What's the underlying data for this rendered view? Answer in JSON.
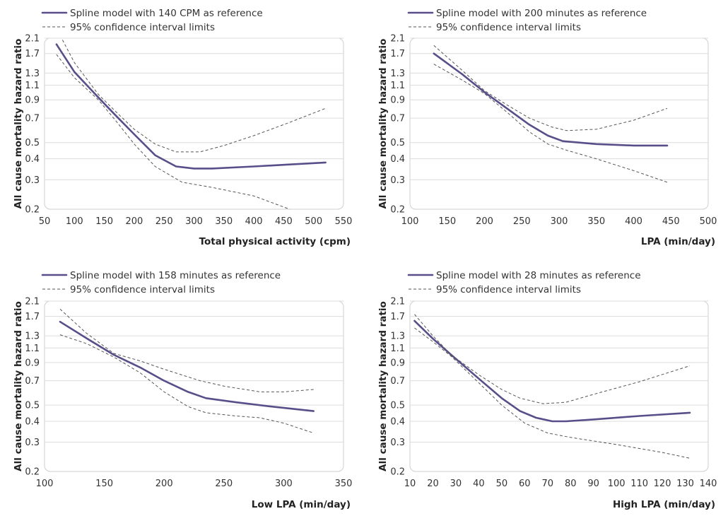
{
  "chart_data": [
    {
      "type": "line",
      "xlabel": "Total physical activity (cpm)",
      "ylabel": "All cause mortality hazard ratio",
      "xlim": [
        50,
        550
      ],
      "xticks": [
        50,
        100,
        150,
        200,
        250,
        300,
        350,
        400,
        450,
        500,
        550
      ],
      "ylim": [
        0.2,
        2.1
      ],
      "yscale": "log",
      "yticks": [
        0.2,
        0.3,
        0.4,
        0.5,
        0.7,
        0.9,
        1.1,
        1.3,
        1.7,
        2.1
      ],
      "grid": true,
      "legend_position": "top-left",
      "series": [
        {
          "name": "Spline model with 140 CPM as reference",
          "style": "solid",
          "x": [
            70,
            100,
            140,
            170,
            200,
            235,
            270,
            300,
            330,
            400,
            460,
            520
          ],
          "y": [
            1.93,
            1.32,
            0.93,
            0.72,
            0.56,
            0.42,
            0.36,
            0.35,
            0.35,
            0.36,
            0.37,
            0.38
          ]
        },
        {
          "name": "95% confidence interval limits",
          "style": "dashed",
          "x": [
            80,
            100,
            140,
            170,
            200,
            235,
            270,
            310,
            350,
            400,
            460,
            520
          ],
          "y": [
            2.05,
            1.5,
            0.97,
            0.76,
            0.6,
            0.49,
            0.44,
            0.44,
            0.48,
            0.55,
            0.66,
            0.8
          ]
        },
        {
          "name": "",
          "style": "dashed",
          "x": [
            70,
            100,
            140,
            170,
            200,
            235,
            280,
            330,
            400,
            460
          ],
          "y": [
            1.68,
            1.22,
            0.9,
            0.67,
            0.49,
            0.36,
            0.29,
            0.27,
            0.24,
            0.2
          ]
        }
      ]
    },
    {
      "type": "line",
      "xlabel": "LPA (min/day)",
      "ylabel": "All cause mortality hazard ratio",
      "xlim": [
        100,
        500
      ],
      "xticks": [
        100,
        150,
        200,
        250,
        300,
        350,
        400,
        450,
        500
      ],
      "ylim": [
        0.2,
        2.1
      ],
      "yscale": "log",
      "yticks": [
        0.2,
        0.3,
        0.4,
        0.5,
        0.7,
        0.9,
        1.1,
        1.3,
        1.7,
        2.1
      ],
      "grid": true,
      "legend_position": "top-left",
      "series": [
        {
          "name": "Spline model with 200 minutes as reference",
          "style": "solid",
          "x": [
            132,
            170,
            200,
            230,
            260,
            285,
            305,
            350,
            400,
            445
          ],
          "y": [
            1.7,
            1.28,
            1.0,
            0.8,
            0.64,
            0.55,
            0.51,
            0.49,
            0.48,
            0.48
          ]
        },
        {
          "name": "95% confidence interval limits",
          "style": "dashed",
          "x": [
            132,
            170,
            200,
            230,
            260,
            290,
            310,
            350,
            400,
            445
          ],
          "y": [
            1.9,
            1.35,
            1.02,
            0.84,
            0.7,
            0.62,
            0.59,
            0.6,
            0.68,
            0.8
          ]
        },
        {
          "name": "",
          "style": "dashed",
          "x": [
            132,
            170,
            200,
            230,
            260,
            285,
            310,
            350,
            400,
            445
          ],
          "y": [
            1.47,
            1.18,
            0.98,
            0.76,
            0.58,
            0.49,
            0.45,
            0.4,
            0.34,
            0.29
          ]
        }
      ]
    },
    {
      "type": "line",
      "xlabel": "Low LPA (min/day)",
      "ylabel": "All cause mortality hazard ratio",
      "xlim": [
        100,
        350
      ],
      "xticks": [
        100,
        150,
        200,
        250,
        300,
        350
      ],
      "ylim": [
        0.2,
        2.1
      ],
      "yscale": "log",
      "yticks": [
        0.2,
        0.3,
        0.4,
        0.5,
        0.7,
        0.9,
        1.1,
        1.3,
        1.7,
        2.1
      ],
      "grid": true,
      "legend_position": "top-left",
      "series": [
        {
          "name": "Spline model with 158 minutes as reference",
          "style": "solid",
          "x": [
            113,
            135,
            158,
            180,
            200,
            220,
            235,
            260,
            290,
            325
          ],
          "y": [
            1.58,
            1.26,
            1.0,
            0.84,
            0.7,
            0.6,
            0.55,
            0.52,
            0.49,
            0.46
          ]
        },
        {
          "name": "95% confidence interval limits",
          "style": "dashed",
          "x": [
            113,
            135,
            158,
            180,
            200,
            230,
            250,
            280,
            300,
            325
          ],
          "y": [
            1.88,
            1.35,
            1.02,
            0.92,
            0.82,
            0.7,
            0.65,
            0.6,
            0.6,
            0.62
          ]
        },
        {
          "name": "",
          "style": "dashed",
          "x": [
            113,
            135,
            158,
            180,
            200,
            220,
            235,
            260,
            280,
            300,
            325
          ],
          "y": [
            1.32,
            1.17,
            0.97,
            0.78,
            0.6,
            0.49,
            0.45,
            0.43,
            0.42,
            0.39,
            0.34
          ]
        }
      ]
    },
    {
      "type": "line",
      "xlabel": "High LPA (min/day)",
      "ylabel": "All cause mortality hazard ratio",
      "xlim": [
        10,
        140
      ],
      "xticks": [
        10,
        20,
        30,
        40,
        50,
        60,
        70,
        80,
        90,
        100,
        110,
        120,
        130,
        140
      ],
      "ylim": [
        0.2,
        2.1
      ],
      "yscale": "log",
      "yticks": [
        0.2,
        0.3,
        0.4,
        0.5,
        0.7,
        0.9,
        1.1,
        1.3,
        1.7,
        2.1
      ],
      "grid": true,
      "legend_position": "top-left",
      "series": [
        {
          "name": "Spline model with 28 minutes as reference",
          "style": "solid",
          "x": [
            12,
            20,
            28,
            40,
            50,
            58,
            65,
            72,
            78,
            90,
            110,
            132
          ],
          "y": [
            1.6,
            1.25,
            1.0,
            0.72,
            0.55,
            0.46,
            0.42,
            0.4,
            0.4,
            0.41,
            0.43,
            0.45
          ]
        },
        {
          "name": "95% confidence interval limits",
          "style": "dashed",
          "x": [
            12,
            20,
            28,
            40,
            50,
            58,
            68,
            78,
            90,
            110,
            132
          ],
          "y": [
            1.75,
            1.3,
            1.0,
            0.76,
            0.62,
            0.55,
            0.51,
            0.52,
            0.58,
            0.69,
            0.86
          ]
        },
        {
          "name": "",
          "style": "dashed",
          "x": [
            12,
            20,
            28,
            40,
            50,
            60,
            70,
            80,
            100,
            120,
            132
          ],
          "y": [
            1.45,
            1.2,
            0.98,
            0.68,
            0.5,
            0.39,
            0.34,
            0.32,
            0.29,
            0.26,
            0.24
          ]
        }
      ]
    }
  ]
}
